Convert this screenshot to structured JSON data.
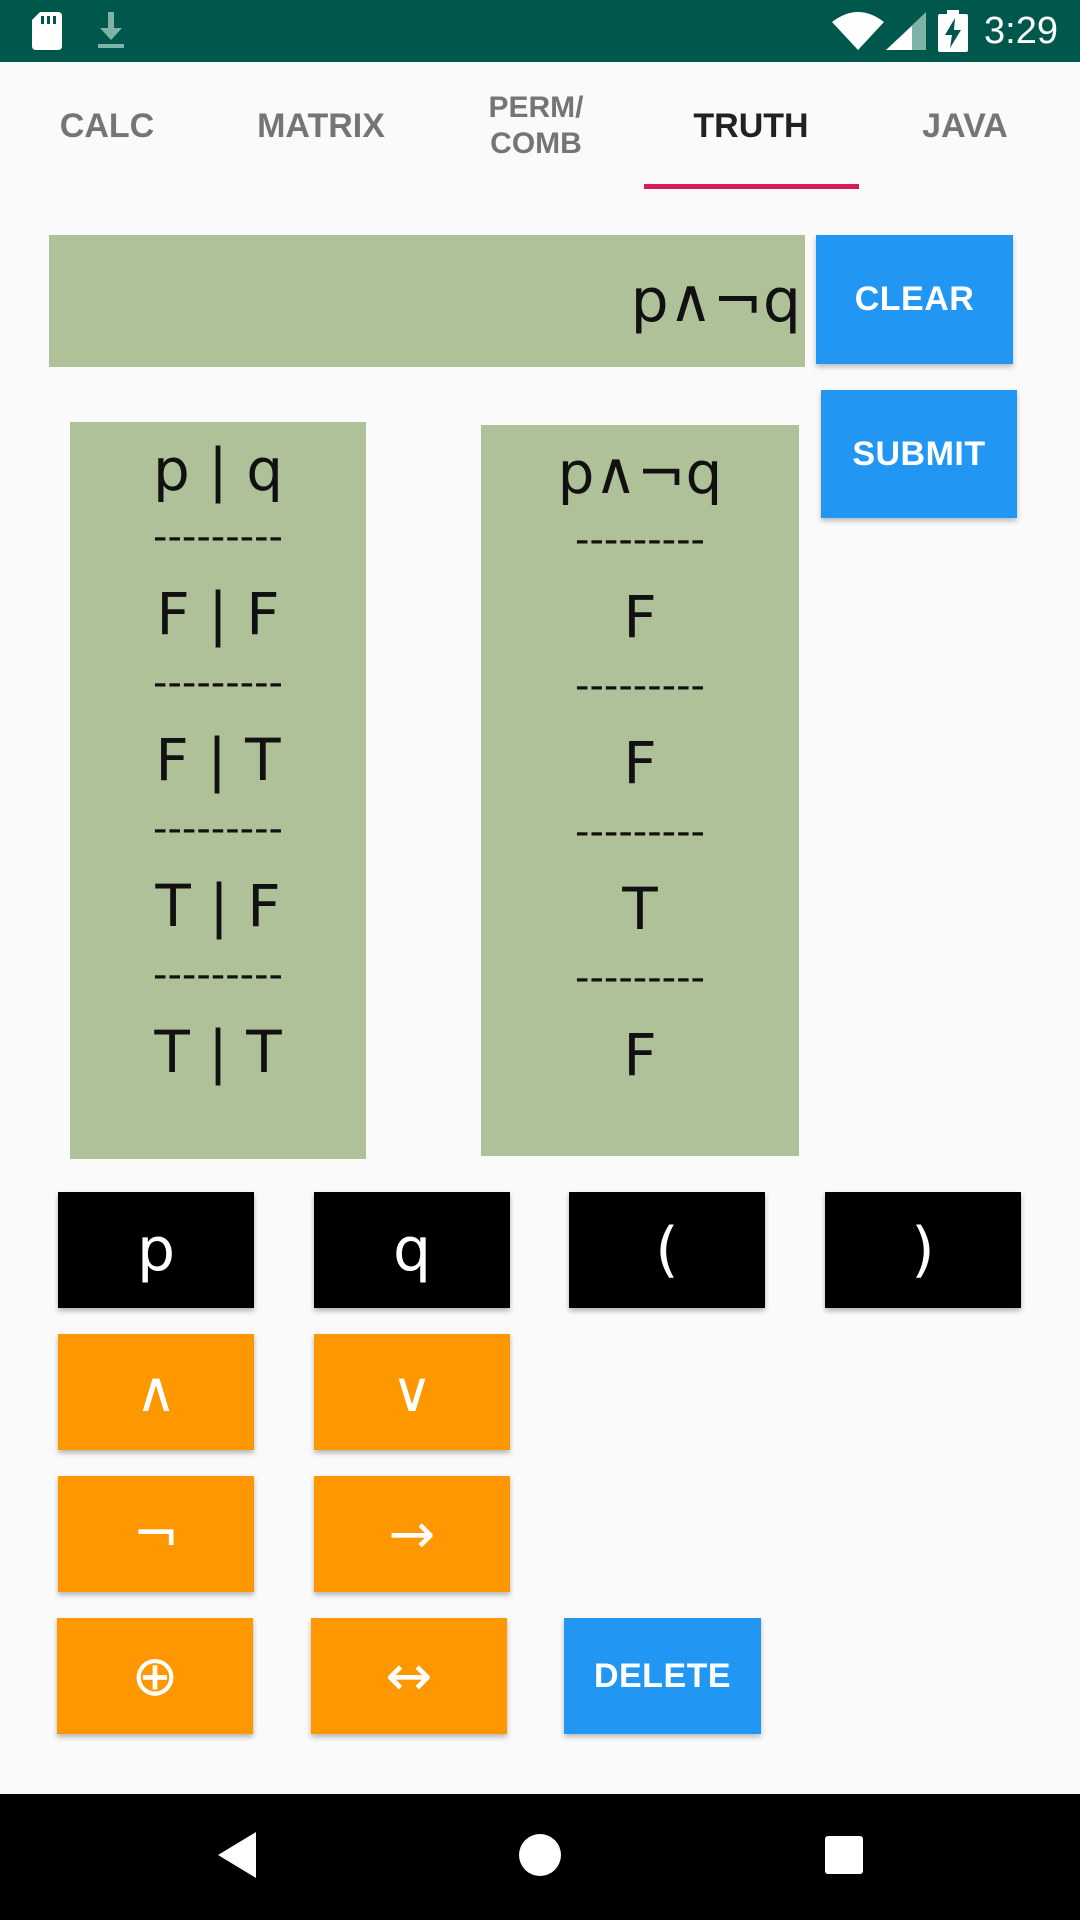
{
  "status_bar": {
    "time": "3:29",
    "icons": [
      "sd-card-icon",
      "download-icon",
      "wifi-icon",
      "cell-signal-icon",
      "battery-charging-icon"
    ]
  },
  "tabs": [
    {
      "label": "CALC",
      "active": false
    },
    {
      "label": "MATRIX",
      "active": false
    },
    {
      "label": "PERM/\nCOMB",
      "active": false
    },
    {
      "label": "TRUTH",
      "active": true
    },
    {
      "label": "JAVA",
      "active": false
    }
  ],
  "expression": "p∧¬q",
  "buttons": {
    "clear": "CLEAR",
    "submit": "SUBMIT",
    "delete": "DELETE"
  },
  "truth_table": {
    "inputs_header": "p | q",
    "result_header": "p∧¬q",
    "separator": "---------",
    "input_rows": [
      "F | F",
      "F | T",
      "T | F",
      "T | T"
    ],
    "result_rows": [
      "F",
      "F",
      "T",
      "F"
    ]
  },
  "keypad": {
    "variables": [
      "p",
      "q",
      "(",
      ")"
    ],
    "and": "∧",
    "or": "∨",
    "not": "¬",
    "implies": "→",
    "xor": "⊕",
    "iff": "↔"
  },
  "colors": {
    "status_bar": "#00574b",
    "tab_indicator": "#d81b60",
    "panel": "#afc198",
    "blue_button": "#2196f3",
    "orange_button": "#ff9800"
  }
}
